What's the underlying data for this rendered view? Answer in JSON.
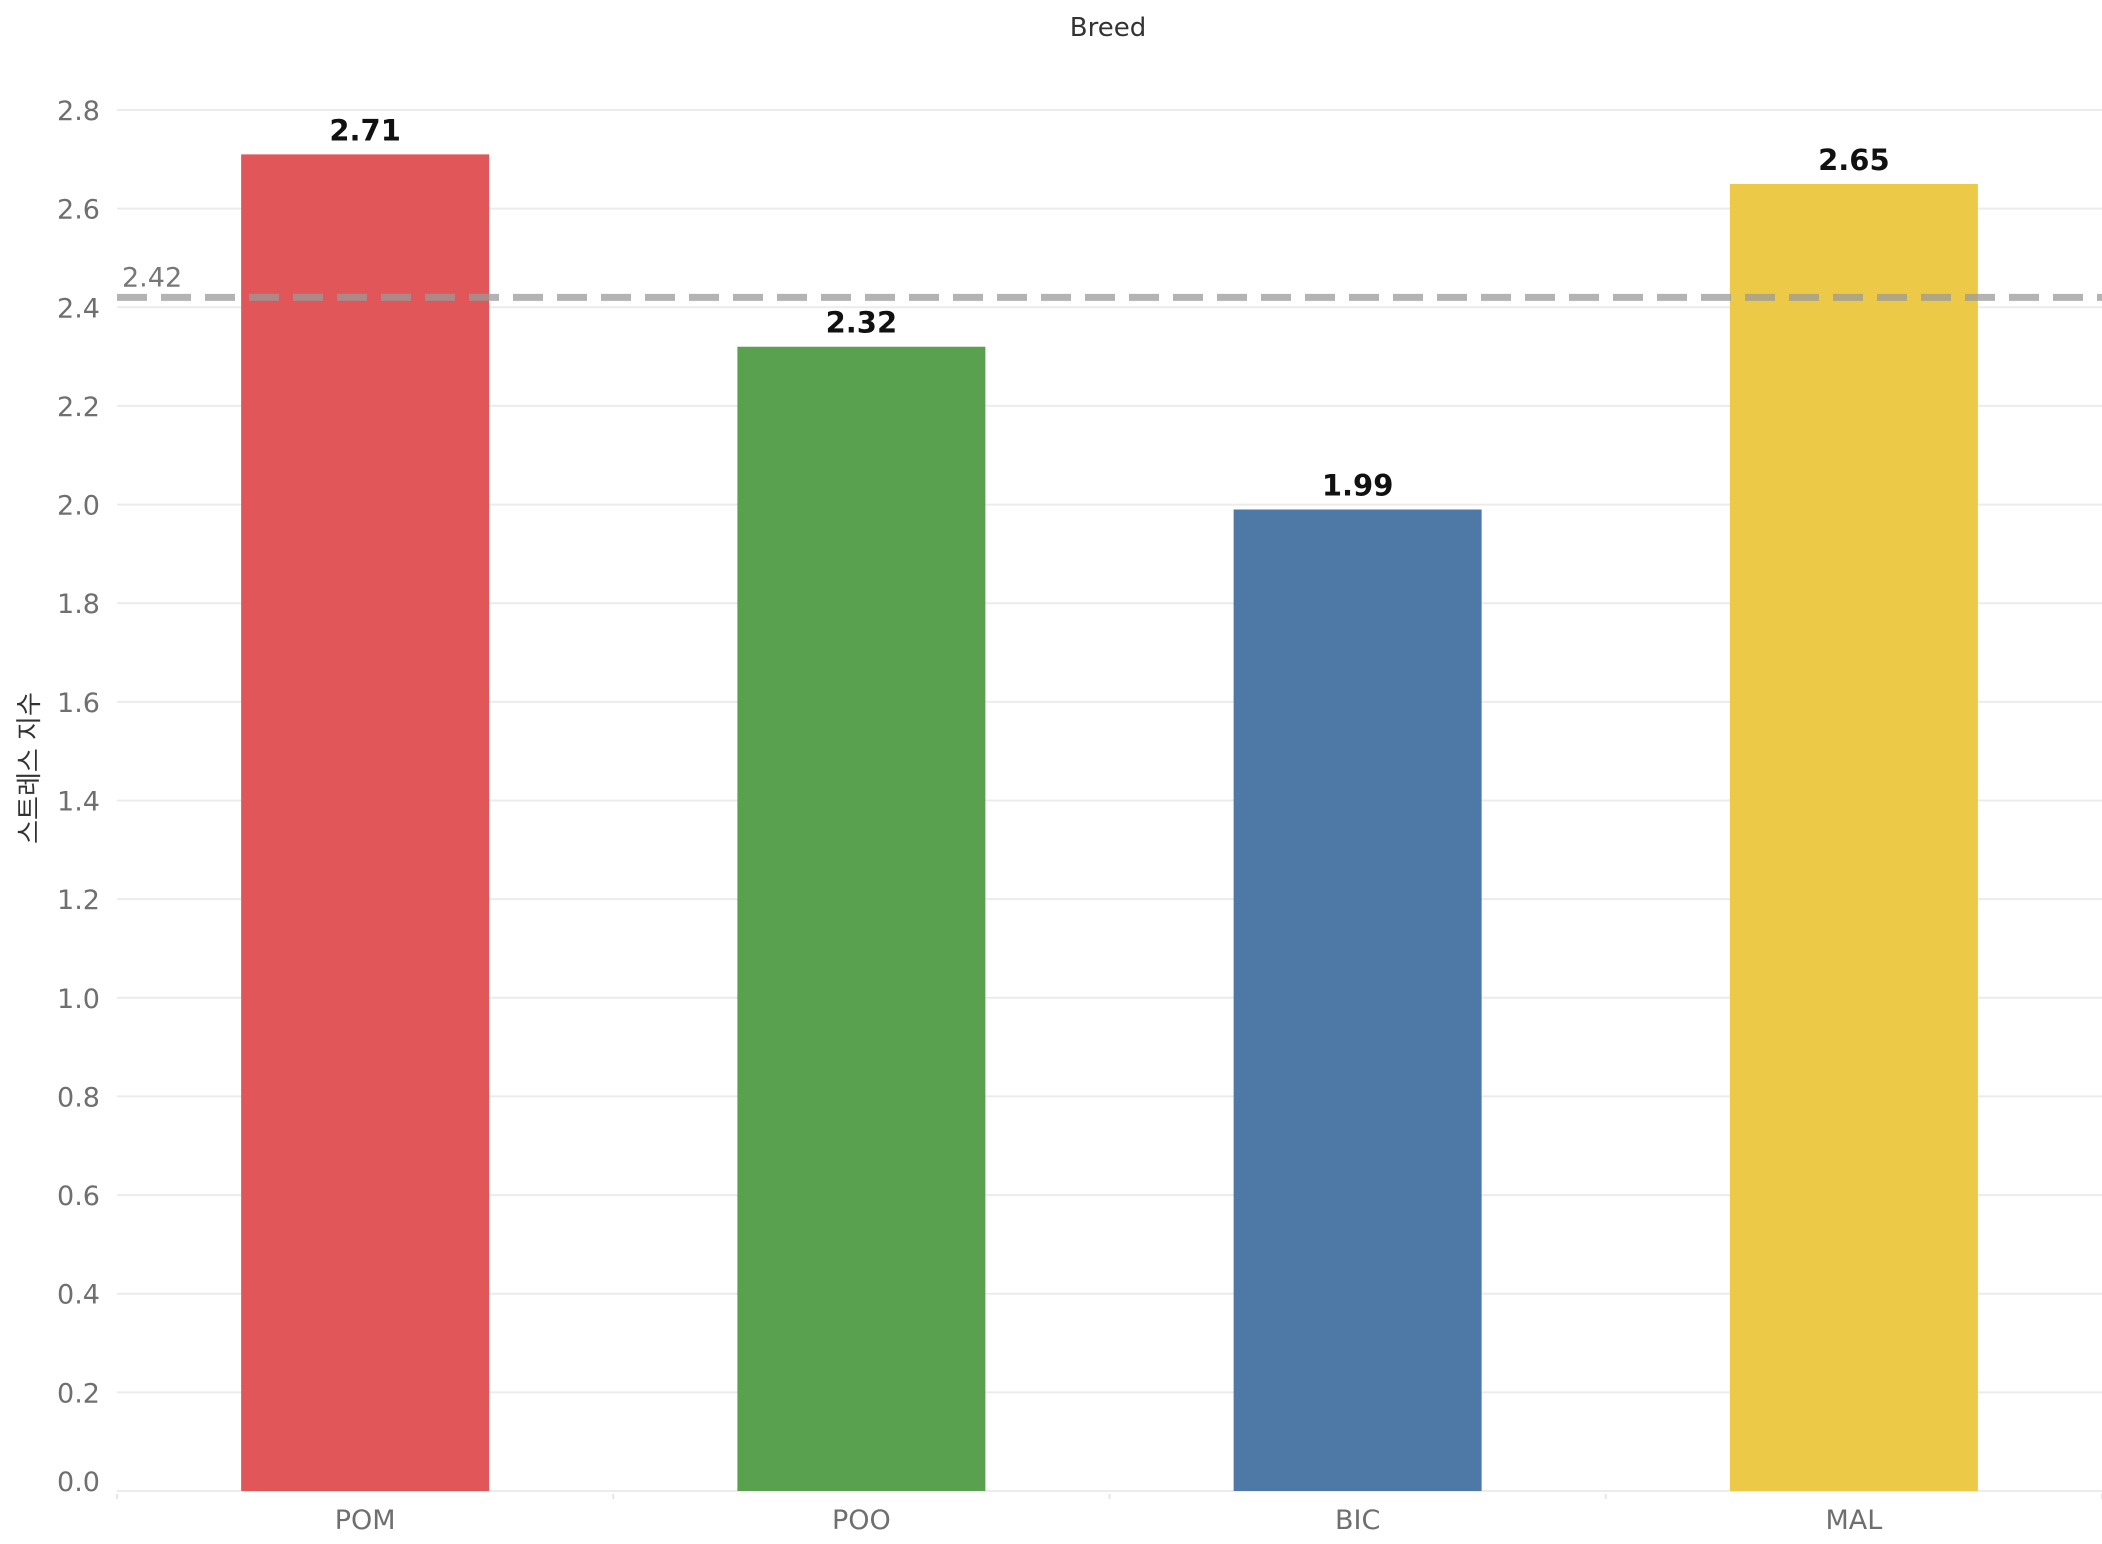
{
  "chart_data": {
    "type": "bar",
    "title": "Breed",
    "xlabel": "",
    "ylabel": "스트레스 지수",
    "categories": [
      "POM",
      "POO",
      "BIC",
      "MAL"
    ],
    "values": [
      2.71,
      2.32,
      1.99,
      2.65
    ],
    "data_labels": [
      "2.71",
      "2.32",
      "1.99",
      "2.65"
    ],
    "colors": [
      "#e15759",
      "#59a14f",
      "#4e79a7",
      "#edc948"
    ],
    "ylim": [
      0,
      2.9
    ],
    "yticks": [
      0.0,
      0.2,
      0.4,
      0.6,
      0.8,
      1.0,
      1.2,
      1.4,
      1.6,
      1.8,
      2.0,
      2.2,
      2.4,
      2.6,
      2.8
    ],
    "ytick_labels": [
      "0.0",
      "0.2",
      "0.4",
      "0.6",
      "0.8",
      "1.0",
      "1.2",
      "1.4",
      "1.6",
      "1.8",
      "2.0",
      "2.2",
      "2.4",
      "2.6",
      "2.8"
    ],
    "grid": true,
    "legend": "none",
    "reference_line": {
      "value": 2.42,
      "label": "2.42",
      "style": "dashed",
      "color": "#999999"
    }
  }
}
